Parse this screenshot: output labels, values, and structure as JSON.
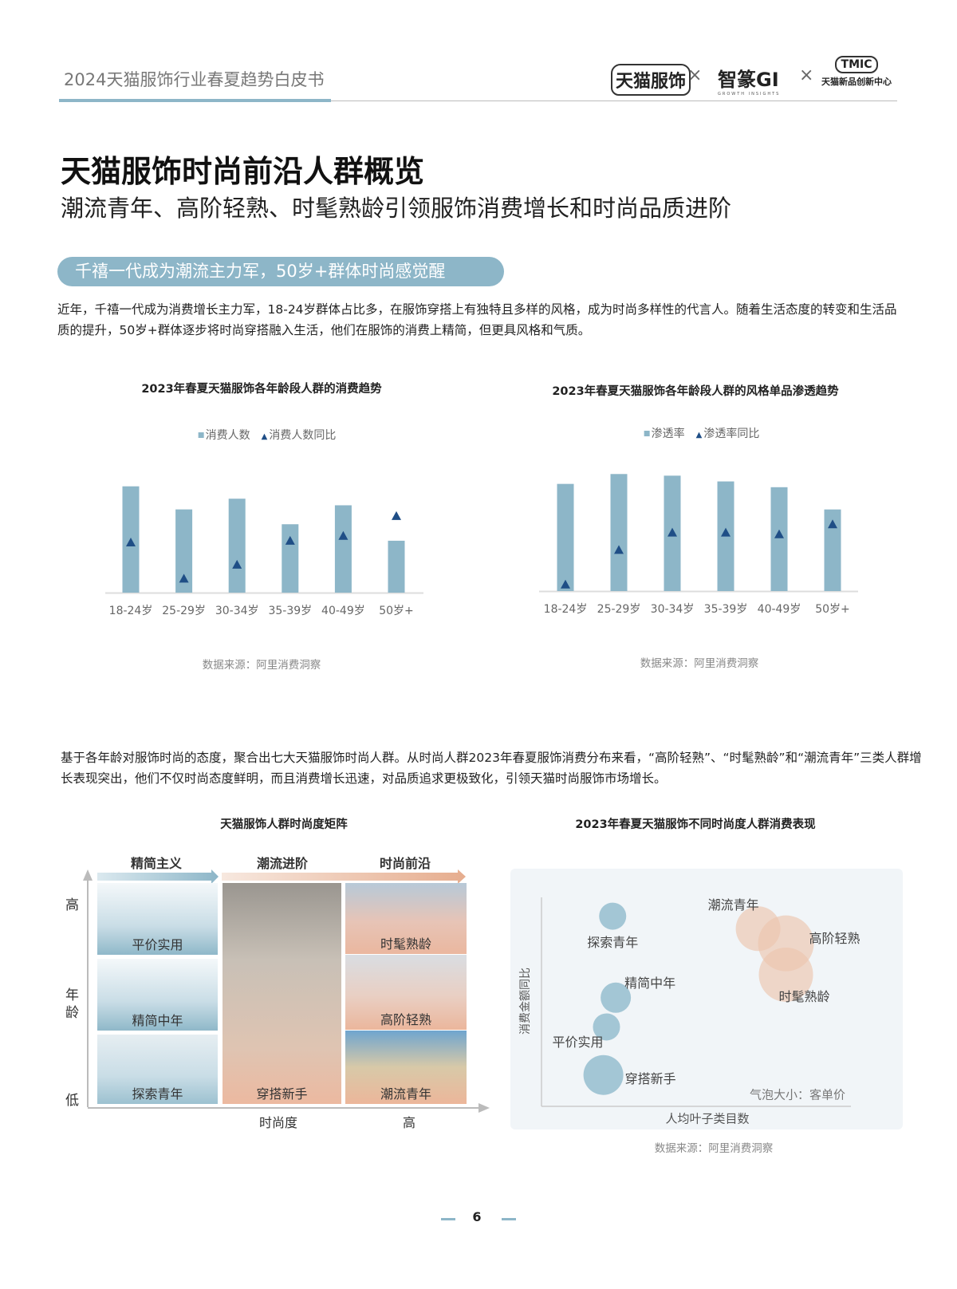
{
  "header": {
    "title": "2024天猫服饰行业春夏趋势白皮书",
    "logos": [
      "天猫服饰",
      "智篆GI",
      "GROWTH INSIGHTS",
      "TMIC",
      "天猫新品创新中心"
    ],
    "separator": "×"
  },
  "page_title": "天猫服饰时尚前沿人群概览",
  "page_subtitle": "潮流青年、高阶轻熟、时髦熟龄引领服饰消费增长和时尚品质进阶",
  "section_pill": "千禧一代成为潮流主力军，50岁+群体时尚感觉醒",
  "paragraph1": "近年，千禧一代成为消费增长主力军，18-24岁群体占比多，在服饰穿搭上有独特且多样的风格，成为时尚多样性的代言人。随着生活态度的转变和生活品质的提升，50岁+群体逐步将时尚穿搭融入生活，他们在服饰的消费上精简，但更具风格和气质。",
  "paragraph2": "基于各年龄对服饰时尚的态度，聚合出七大天猫服饰时尚人群。从时尚人群2023年春夏服饰消费分布来看，“高阶轻熟”、“时髦熟龄”和“潮流青年”三类人群增长表现突出，他们不仅时尚态度鲜明，而且消费增长迅速，对品质追求更极致化，引领天猫时尚服饰市场增长。",
  "colors": {
    "bar": "#8db6c8",
    "marker": "#1f4e86",
    "accent": "#8db6c8",
    "bubble_blue": "#9ec3d3",
    "bubble_peach": "#ecc4ae"
  },
  "chart_data": [
    {
      "type": "bar",
      "title": "2023年春夏天猫服饰各年龄段人群的消费趋势",
      "categories": [
        "18-24岁",
        "25-29岁",
        "30-34岁",
        "35-39岁",
        "40-49岁",
        "50岁+"
      ],
      "series": [
        {
          "name": "消费人数",
          "kind": "bar",
          "values": [
            129,
            101,
            114,
            83,
            106,
            63
          ]
        },
        {
          "name": "消费人数同比",
          "kind": "triangle-marker",
          "values": [
            61,
            17,
            34,
            63,
            69,
            93
          ]
        }
      ],
      "ylim": [
        0,
        150
      ],
      "value_axis_labels": "none",
      "legend": "top",
      "grid": false,
      "source": "数据来源：阿里消费洞察"
    },
    {
      "type": "bar",
      "title": "2023年春夏天猫服饰各年龄段人群的风格单品渗透趋势",
      "categories": [
        "18-24岁",
        "25-29岁",
        "30-34岁",
        "35-39岁",
        "40-49岁",
        "50岁+"
      ],
      "series": [
        {
          "name": "渗透率",
          "kind": "bar",
          "values": [
            130,
            142,
            140,
            133,
            126,
            99
          ]
        },
        {
          "name": "渗透率同比",
          "kind": "triangle-marker",
          "values": [
            8,
            50,
            71,
            71,
            69,
            81
          ]
        }
      ],
      "ylim": [
        0,
        150
      ],
      "value_axis_labels": "none",
      "legend": "top",
      "grid": false,
      "source": "数据来源：阿里消费洞察"
    },
    {
      "type": "scatter",
      "subtype": "bubble",
      "title": "2023年春夏天猫服饰不同时尚度人群消费表现",
      "xlabel": "人均叶子类目数",
      "ylabel": "消费金额同比",
      "note": "气泡大小：客单价",
      "xlim": [
        0,
        100
      ],
      "ylim": [
        0,
        100
      ],
      "points": [
        {
          "label": "探索青年",
          "x": 23,
          "y": 91,
          "size": 17,
          "group": "blue"
        },
        {
          "label": "精简中年",
          "x": 24,
          "y": 52,
          "size": 19,
          "group": "blue"
        },
        {
          "label": "平价实用",
          "x": 21,
          "y": 38,
          "size": 17,
          "group": "blue"
        },
        {
          "label": "穿搭新手",
          "x": 20,
          "y": 15,
          "size": 25,
          "group": "blue"
        },
        {
          "label": "潮流青年",
          "x": 70,
          "y": 85,
          "size": 28,
          "group": "peach"
        },
        {
          "label": "高阶轻熟",
          "x": 79,
          "y": 78,
          "size": 35,
          "group": "peach"
        },
        {
          "label": "时髦熟龄",
          "x": 79,
          "y": 63,
          "size": 34,
          "group": "peach"
        }
      ],
      "source": "数据来源：阿里消费洞察"
    }
  ],
  "matrix": {
    "title": "天猫服饰人群时尚度矩阵",
    "columns": [
      "精简主义",
      "潮流进阶",
      "时尚前沿"
    ],
    "y_axis": {
      "high": "高",
      "label": "年龄",
      "low": "低"
    },
    "x_axis": {
      "label": "时尚度",
      "high": "高"
    },
    "tiles": [
      "平价实用",
      "精简中年",
      "探索青年",
      "穿搭新手",
      "时髦熟龄",
      "高阶轻熟",
      "潮流青年"
    ]
  },
  "page_number": "6"
}
